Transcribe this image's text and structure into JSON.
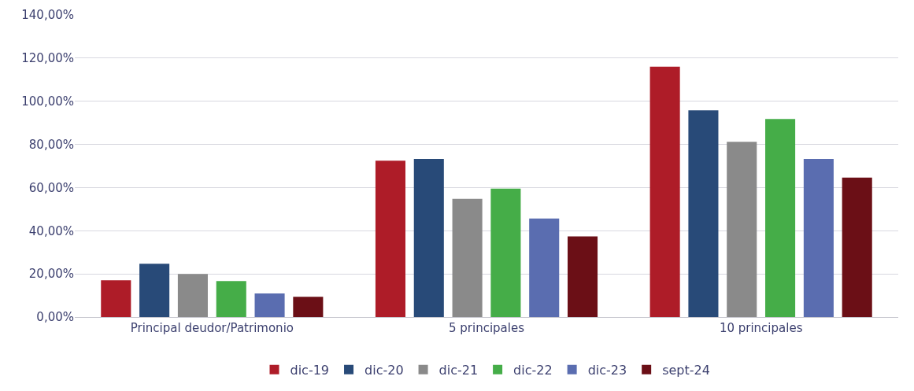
{
  "chart_data": {
    "type": "bar",
    "categories": [
      "Principal deudor/Patrimonio",
      "5 principales",
      "10 principales"
    ],
    "series": [
      {
        "name": "dic-19",
        "color": "#ae1c28",
        "values": [
          17.0,
          72.5,
          116.0
        ]
      },
      {
        "name": "dic-20",
        "color": "#284a78",
        "values": [
          24.7,
          73.3,
          95.8
        ]
      },
      {
        "name": "dic-21",
        "color": "#8a8a8a",
        "values": [
          20.0,
          54.8,
          81.2
        ]
      },
      {
        "name": "dic-22",
        "color": "#45ad48",
        "values": [
          16.7,
          59.5,
          91.8
        ]
      },
      {
        "name": "dic-23",
        "color": "#5a6db0",
        "values": [
          10.9,
          45.7,
          73.3
        ]
      },
      {
        "name": "sept-24",
        "color": "#6b0f16",
        "values": [
          9.4,
          37.4,
          64.6
        ]
      }
    ],
    "ylim": [
      0,
      140
    ],
    "yticks": [
      {
        "value": 0,
        "label": "0,00%"
      },
      {
        "value": 20,
        "label": "20,00%"
      },
      {
        "value": 40,
        "label": "40,00%"
      },
      {
        "value": 60,
        "label": "60,00%"
      },
      {
        "value": 80,
        "label": "80,00%"
      },
      {
        "value": 100,
        "label": "100,00%"
      },
      {
        "value": 120,
        "label": "120,00%"
      },
      {
        "value": 140,
        "label": "140,00%"
      }
    ],
    "grid": "y",
    "legend": "bottom"
  }
}
